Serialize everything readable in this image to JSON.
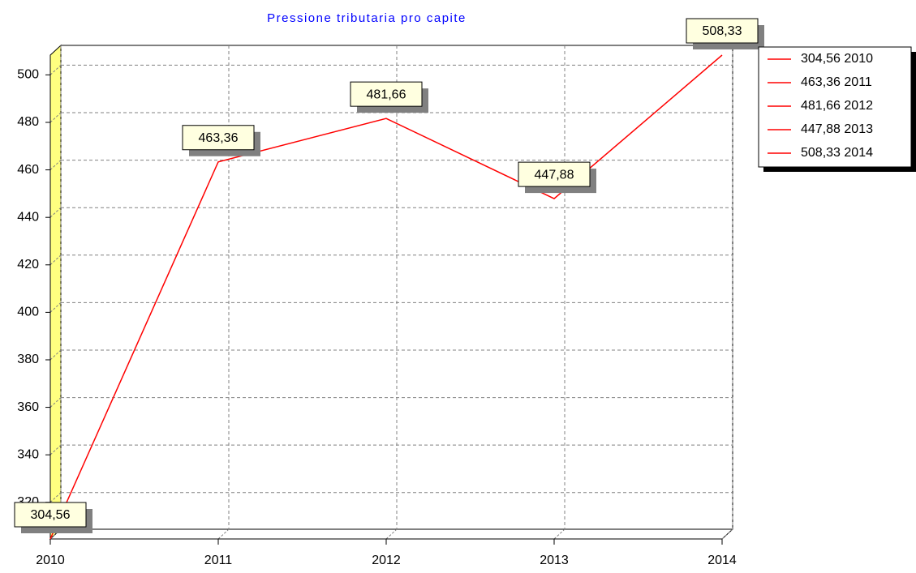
{
  "chart_data": {
    "type": "line",
    "title": "Pressione tributaria pro capite",
    "x": [
      2010,
      2011,
      2012,
      2013,
      2014
    ],
    "series": [
      {
        "name": "Pressione tributaria pro capite",
        "color": "#ff0000",
        "values": [
          304.56,
          463.36,
          481.66,
          447.88,
          508.33
        ],
        "value_labels": [
          "304,56",
          "463,36",
          "481,66",
          "447,88",
          "508,33"
        ]
      }
    ],
    "xlim": [
      2010,
      2014
    ],
    "xticks": [
      2010,
      2011,
      2012,
      2013,
      2014
    ],
    "ylim": [
      304.56,
      508.33
    ],
    "yticks": [
      320,
      340,
      360,
      380,
      400,
      420,
      440,
      460,
      480,
      500
    ],
    "grid": true,
    "legend": "right",
    "wall_color": "#ffff80"
  }
}
